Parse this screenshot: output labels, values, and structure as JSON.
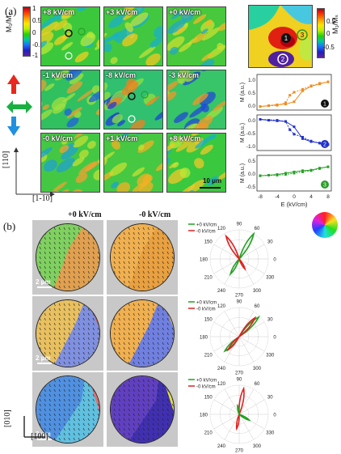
{
  "panel_a": {
    "letter": "(a)",
    "maps": [
      {
        "label": "+8 kV/cm",
        "palette": [
          "#3cc83c",
          "#b8e838",
          "#18b4c8",
          "#f0d020"
        ]
      },
      {
        "label": "+3 kV/cm",
        "palette": [
          "#42c840",
          "#c0e03a",
          "#1ab0c8",
          "#f4c820"
        ]
      },
      {
        "label": "+0 kV/cm",
        "palette": [
          "#48c83c",
          "#c8e030",
          "#20a8c8",
          "#f0b828"
        ]
      },
      {
        "label": "-1 kV/cm",
        "palette": [
          "#30c060",
          "#a0e040",
          "#2060e0",
          "#e8a030"
        ]
      },
      {
        "label": "-8 kV/cm",
        "palette": [
          "#30c070",
          "#90e040",
          "#1c40d8",
          "#f08020"
        ]
      },
      {
        "label": "-3 kV/cm",
        "palette": [
          "#38c468",
          "#a8e03c",
          "#2048d8",
          "#f09828"
        ]
      },
      {
        "label": "-0 kV/cm",
        "palette": [
          "#44c844",
          "#c0e034",
          "#20a0d0",
          "#f0a030"
        ]
      },
      {
        "label": "+1 kV/cm",
        "palette": [
          "#46c842",
          "#c4e032",
          "#1ca4cc",
          "#f4b024"
        ]
      },
      {
        "label": "+8 kV/cm",
        "palette": [
          "#3ac83e",
          "#bce838",
          "#18b0c8",
          "#f0c828"
        ]
      }
    ],
    "colorbar_label": "M₁/Mₛ",
    "colorbar_ticks": [
      "1",
      "0.5",
      "0",
      "-0.5",
      "-1"
    ],
    "colorbar_right_ticks": [
      "0.5",
      "0",
      "-0.5"
    ],
    "colorbar_right_label": "M₁/Mₛ",
    "scale_bar": "10 μm",
    "axis_up": "[110]",
    "axis_right": "[1-10]",
    "markers": [
      "1",
      "2",
      "3"
    ],
    "colors": {
      "red_arrow": "#e8281c",
      "green_arrow": "#18b040",
      "blue_arrow": "#2090e0"
    }
  },
  "loops": {
    "ylabel": "M (a.u.)",
    "xlabel": "E (kV/cm)",
    "x_ticks": [
      "-8",
      "-4",
      "0",
      "4",
      "8"
    ],
    "panels": [
      {
        "id": "1",
        "color": "#f08c1e",
        "badge_color": "#111111",
        "y_ticks": [
          "1.0",
          "0.5",
          "0.0"
        ],
        "ylim": [
          -0.1,
          1.1
        ],
        "branch_a": [
          [
            -8,
            0.02
          ],
          [
            -6,
            0.05
          ],
          [
            -4,
            0.08
          ],
          [
            -2,
            0.1
          ],
          [
            0,
            0.18
          ],
          [
            2,
            0.55
          ],
          [
            4,
            0.7
          ],
          [
            6,
            0.78
          ],
          [
            8,
            0.85
          ]
        ],
        "branch_b": [
          [
            8,
            0.85
          ],
          [
            6,
            0.8
          ],
          [
            4,
            0.72
          ],
          [
            2,
            0.6
          ],
          [
            0,
            0.5
          ],
          [
            -1,
            0.4
          ],
          [
            -2,
            0.15
          ],
          [
            -4,
            0.06
          ],
          [
            -8,
            0.02
          ]
        ]
      },
      {
        "id": "2",
        "color": "#2030c8",
        "badge_color": "#2030c8",
        "y_ticks": [
          "0.0",
          "-0.5",
          "-1.0"
        ],
        "ylim": [
          -1.1,
          0.1
        ],
        "branch_a": [
          [
            -8,
            -0.05
          ],
          [
            -6,
            -0.08
          ],
          [
            -4,
            -0.1
          ],
          [
            -2,
            -0.12
          ],
          [
            0,
            -0.3
          ],
          [
            2,
            -0.7
          ],
          [
            4,
            -0.8
          ],
          [
            6,
            -0.85
          ],
          [
            8,
            -0.9
          ]
        ],
        "branch_b": [
          [
            8,
            -0.9
          ],
          [
            6,
            -0.85
          ],
          [
            4,
            -0.78
          ],
          [
            2,
            -0.65
          ],
          [
            0,
            -0.55
          ],
          [
            -1,
            -0.4
          ],
          [
            -2,
            -0.12
          ],
          [
            -4,
            -0.08
          ],
          [
            -8,
            -0.05
          ]
        ]
      },
      {
        "id": "3",
        "color": "#28a028",
        "badge_color": "#28a028",
        "y_ticks": [
          "0.5",
          "0.0",
          "-0.5"
        ],
        "ylim": [
          -0.7,
          0.7
        ],
        "branch_a": [
          [
            -8,
            -0.1
          ],
          [
            -6,
            -0.08
          ],
          [
            -4,
            -0.05
          ],
          [
            -2,
            0.0
          ],
          [
            0,
            0.05
          ],
          [
            2,
            0.1
          ],
          [
            4,
            0.12
          ],
          [
            6,
            0.2
          ],
          [
            8,
            0.25
          ]
        ],
        "branch_b": [
          [
            8,
            0.25
          ],
          [
            6,
            0.18
          ],
          [
            4,
            0.1
          ],
          [
            2,
            0.05
          ],
          [
            0,
            0.0
          ],
          [
            -2,
            -0.05
          ],
          [
            -4,
            -0.08
          ],
          [
            -8,
            -0.1
          ]
        ]
      }
    ]
  },
  "panel_b": {
    "letter": "(b)",
    "col_titles": [
      "+0 kV/cm",
      "-0 kV/cm"
    ],
    "scale_bar": "2 μm",
    "axis_up": "[010]",
    "axis_right": "[100]",
    "legend": [
      "+0 kV/cm",
      "-0 kV/cm"
    ],
    "legend_colors": [
      "#20a020",
      "#e02020"
    ],
    "polar_angles": [
      "90",
      "120",
      "60",
      "150",
      "30",
      "180",
      "0",
      "210",
      "330",
      "240",
      "300",
      "270"
    ],
    "disc_rows": [
      {
        "left": [
          "#7fd060",
          "#e0a050",
          "#c060c0"
        ],
        "right": [
          "#f0b050",
          "#e8a040",
          "#a060d0"
        ]
      },
      {
        "left": [
          "#e8c060",
          "#8090e0",
          "#d05050"
        ],
        "right": [
          "#f0b050",
          "#7080e0",
          "#e8c060"
        ]
      },
      {
        "left": [
          "#5090e0",
          "#60c0e0",
          "#e07070"
        ],
        "right": [
          "#6040c0",
          "#4030b0",
          "#e0e040"
        ]
      }
    ]
  },
  "chart_data": [
    {
      "type": "line",
      "title": "",
      "xlabel": "E (kV/cm)",
      "ylabel": "M (a.u.)",
      "ylim": [
        -0.1,
        1.1
      ],
      "series": [
        {
          "values": [
            0.02,
            0.05,
            0.08,
            0.1,
            0.18,
            0.55,
            0.7,
            0.78,
            0.85
          ]
        },
        {
          "values": [
            0.85,
            0.8,
            0.72,
            0.6,
            0.5,
            0.4,
            0.15,
            0.06,
            0.02
          ]
        }
      ]
    },
    {
      "type": "line",
      "title": "",
      "xlabel": "E (kV/cm)",
      "ylabel": "M (a.u.)",
      "ylim": [
        -1.1,
        0.1
      ],
      "series": [
        {
          "values": [
            -0.05,
            -0.08,
            -0.1,
            -0.12,
            -0.3,
            -0.7,
            -0.8,
            -0.85,
            -0.9
          ]
        },
        {
          "values": [
            -0.9,
            -0.85,
            -0.78,
            -0.65,
            -0.55,
            -0.4,
            -0.12,
            -0.08,
            -0.05
          ]
        }
      ]
    },
    {
      "type": "line",
      "title": "",
      "xlabel": "E (kV/cm)",
      "ylabel": "M (a.u.)",
      "ylim": [
        -0.7,
        0.7
      ],
      "series": [
        {
          "values": [
            -0.1,
            -0.08,
            -0.05,
            0.0,
            0.05,
            0.1,
            0.12,
            0.2,
            0.25
          ]
        },
        {
          "values": [
            0.25,
            0.18,
            0.1,
            0.05,
            0.0,
            -0.05,
            -0.08,
            -0.1
          ]
        }
      ]
    }
  ]
}
